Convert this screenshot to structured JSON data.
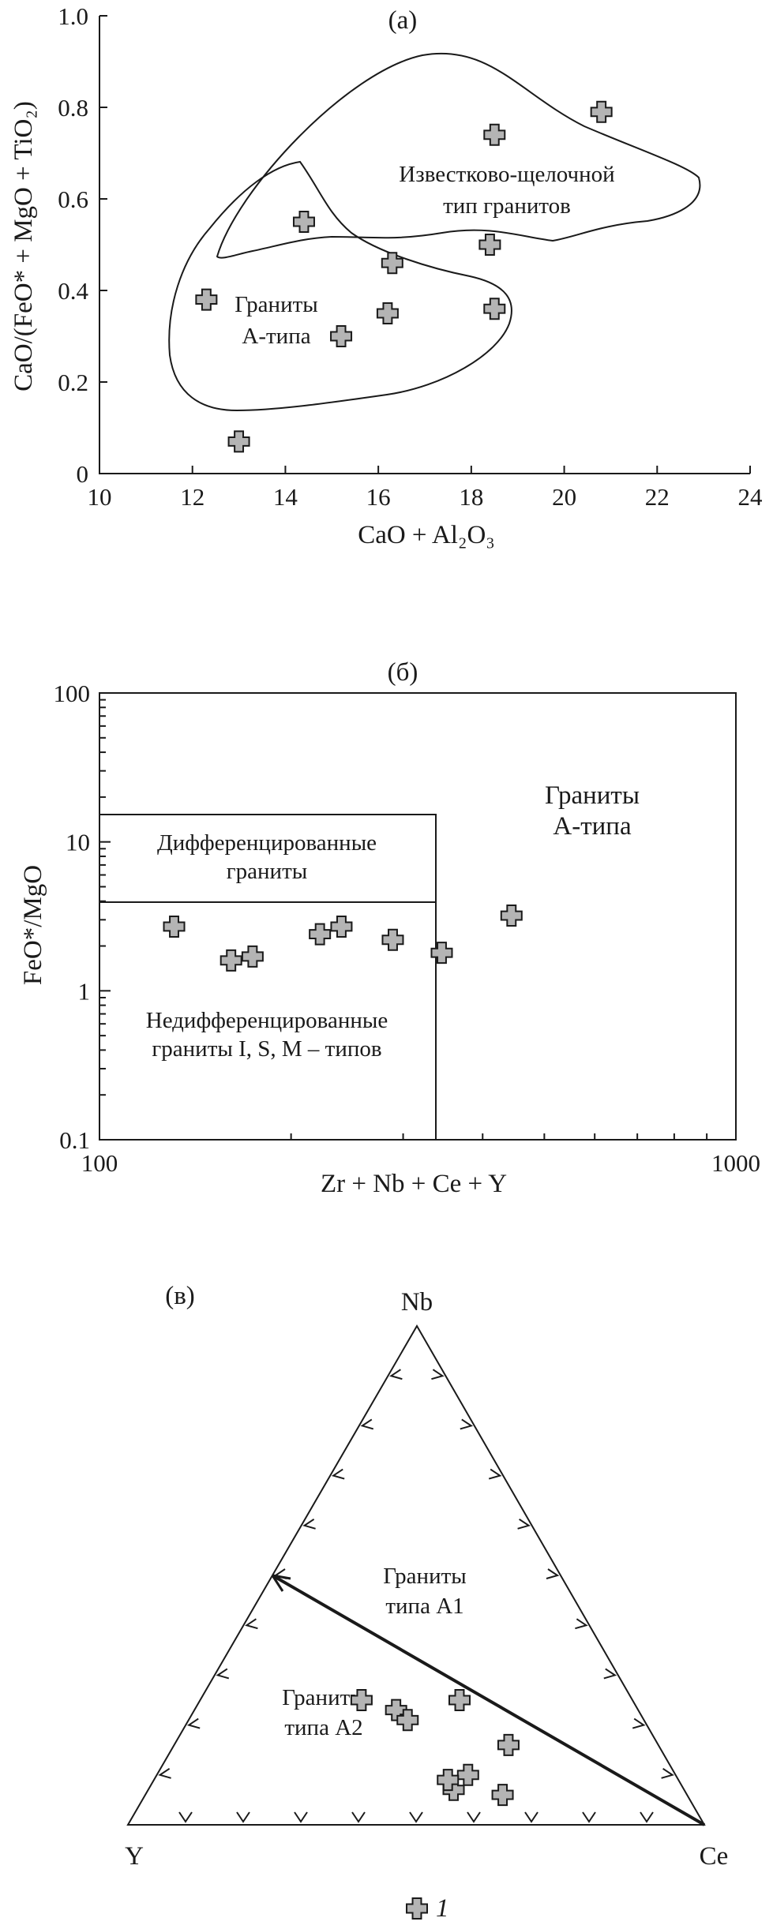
{
  "chart_data": [
    {
      "type": "scatter",
      "panel_label": "(а)",
      "xlabel": "CaO + Al₂O₃",
      "ylabel": "CaO/(FeO* + MgO + TiO₂)",
      "xlim": [
        10,
        24
      ],
      "ylim": [
        0,
        1.0
      ],
      "x_ticks": [
        "10",
        "12",
        "14",
        "16",
        "18",
        "20",
        "22",
        "24"
      ],
      "y_ticks": [
        "0",
        "0.2",
        "0.4",
        "0.6",
        "0.8",
        "1.0"
      ],
      "grid": false,
      "regions": [
        {
          "label": [
            "Известково-щелочной",
            "тип гранитов"
          ]
        },
        {
          "label": [
            "Граниты",
            "А-типа"
          ]
        }
      ],
      "series": [
        {
          "marker": "cross",
          "x": [
            12.3,
            13.0,
            14.4,
            15.2,
            16.2,
            16.3,
            18.4,
            18.5,
            18.5,
            20.8
          ],
          "y": [
            0.38,
            0.07,
            0.55,
            0.3,
            0.35,
            0.46,
            0.5,
            0.74,
            0.36,
            0.79
          ]
        }
      ]
    },
    {
      "type": "scatter",
      "panel_label": "(б)",
      "xlabel": "Zr + Nb + Ce + Y",
      "ylabel": "FeO*/MgO",
      "xscale": "log",
      "yscale": "log",
      "xlim": [
        100,
        1000
      ],
      "ylim": [
        0.1,
        100
      ],
      "x_ticks": [
        "100",
        "1000"
      ],
      "y_ticks": [
        "0.1",
        "1",
        "10",
        "100"
      ],
      "grid": false,
      "regions": [
        {
          "label": [
            "Дифференцированные",
            "граниты"
          ]
        },
        {
          "label": [
            "Недифференцированные",
            "граниты I, S, M – типов"
          ]
        },
        {
          "label": [
            "Граниты",
            "А-типа"
          ]
        }
      ],
      "series": [
        {
          "marker": "cross",
          "x": [
            131,
            161,
            174,
            222,
            240,
            289,
            345,
            444
          ],
          "y": [
            2.7,
            1.6,
            1.7,
            2.4,
            2.7,
            2.2,
            1.8,
            3.2
          ]
        }
      ]
    },
    {
      "type": "ternary",
      "panel_label": "(в)",
      "apices": [
        "Nb",
        "Y",
        "Ce"
      ],
      "regions": [
        {
          "label": [
            "Граниты",
            "типа A1"
          ]
        },
        {
          "label": [
            "Граниты",
            "типа A2"
          ]
        }
      ],
      "series": [
        {
          "marker": "cross",
          "label": "1",
          "Nb": [
            0.25,
            0.23,
            0.21,
            0.25,
            0.16,
            0.07,
            0.1,
            0.06,
            0.09
          ],
          "Y": [
            0.47,
            0.42,
            0.41,
            0.3,
            0.26,
            0.4,
            0.36,
            0.32,
            0.4
          ],
          "Ce": [
            0.28,
            0.35,
            0.38,
            0.45,
            0.58,
            0.53,
            0.54,
            0.62,
            0.51
          ]
        }
      ]
    }
  ],
  "legend": {
    "marker": "cross",
    "label": "1"
  }
}
